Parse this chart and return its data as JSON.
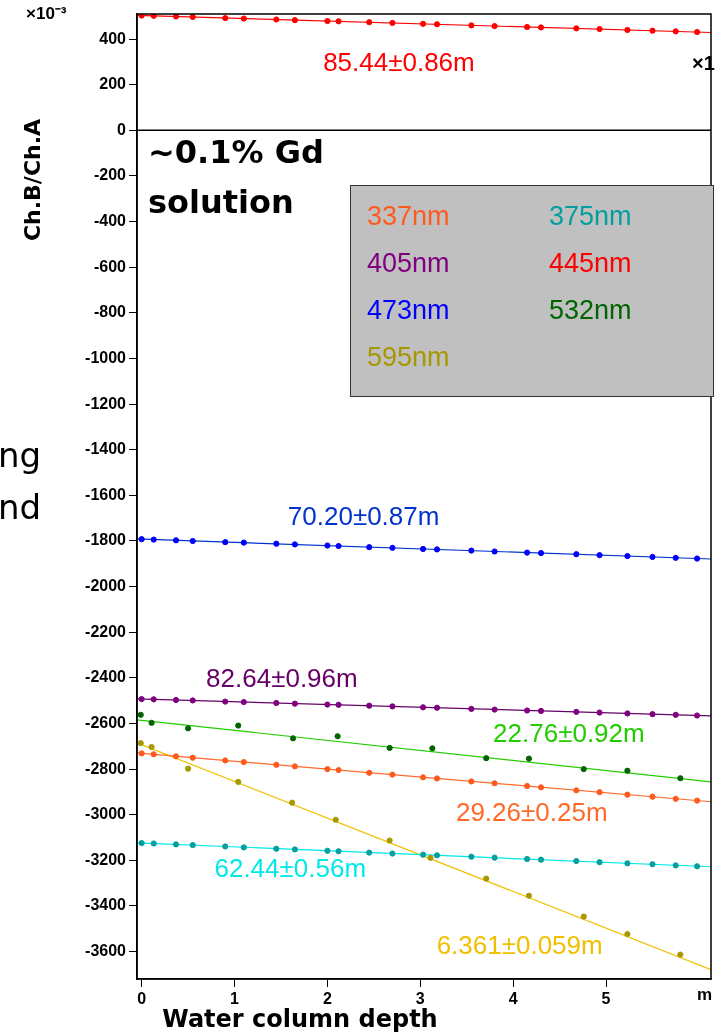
{
  "chart_data": {
    "type": "scatter",
    "xlabel": "Water column depth",
    "ylabel": "Ch.B/Ch.A",
    "annotations": [
      "~0.1% Gd\nsolution",
      "×10⁻³",
      "×1",
      "m",
      "ng",
      "nd",
      {
        "text": "85.44±0.86m",
        "x": 2.77,
        "y": 465
      },
      {
        "text": "70.20±0.87m",
        "x": 2.39,
        "y": -1825
      },
      {
        "text": "82.64±0.96m",
        "x": 1.51,
        "y": -2511
      },
      {
        "text": "22.76±0.92m",
        "x": 4.6,
        "y": -2787
      },
      {
        "text": "29.26±0.25m",
        "x": 4.2,
        "y": -2874
      },
      {
        "text": "62.44±0.56m",
        "x": 1.6,
        "y": -3151
      },
      {
        "text": "6.361±0.059m",
        "x": 4.07,
        "y": -3348
      }
    ],
    "xlim": [
      -0.05,
      6.13
    ],
    "ylim": [
      -3720,
      510
    ],
    "xticks": [
      0,
      1,
      2,
      3,
      4,
      5
    ],
    "yticks": [
      400,
      200,
      0,
      -200,
      -400,
      -600,
      -800,
      -1000,
      -1200,
      -1400,
      -1600,
      -1800,
      -2000,
      -2200,
      -2400,
      -2600,
      -2800,
      -3000,
      -3200,
      -3400,
      -3600
    ],
    "legend": "top right",
    "marker": "circle",
    "ref_lines": [
      {
        "axis": "y",
        "value": 0,
        "color": "#000000"
      }
    ],
    "x": [
      0,
      0.13,
      0.37,
      0.55,
      0.9,
      1.1,
      1.45,
      1.65,
      2.0,
      2.12,
      2.45,
      2.7,
      3.03,
      3.18,
      3.55,
      3.8,
      4.15,
      4.3,
      4.68,
      4.93,
      5.23,
      5.5,
      5.75,
      5.98
    ],
    "series": [
      {
        "type": "scatter",
        "name": "337nm",
        "color": "#ff5a1e",
        "values": [
          -2731,
          -2735,
          -2744,
          -2750,
          -2762,
          -2769,
          -2781,
          -2788,
          -2800,
          -2804,
          -2816,
          -2824,
          -2836,
          -2841,
          -2854,
          -2862,
          -2874,
          -2880,
          -2893,
          -2901,
          -2912,
          -2921,
          -2930,
          -2938
        ]
      },
      {
        "type": "scatter",
        "name": "375nm",
        "color": "#00a0a0",
        "values": [
          -3124,
          -3126,
          -3130,
          -3133,
          -3139,
          -3143,
          -3149,
          -3152,
          -3158,
          -3160,
          -3166,
          -3170,
          -3175,
          -3178,
          -3184,
          -3188,
          -3194,
          -3197,
          -3203,
          -3208,
          -3213,
          -3217,
          -3222,
          -3226
        ]
      },
      {
        "type": "scatter",
        "name": "405nm",
        "color": "#800080",
        "values": [
          -2493,
          -2494,
          -2497,
          -2499,
          -2504,
          -2506,
          -2510,
          -2513,
          -2517,
          -2518,
          -2522,
          -2525,
          -2529,
          -2531,
          -2536,
          -2539,
          -2543,
          -2545,
          -2549,
          -2552,
          -2556,
          -2559,
          -2562,
          -2565
        ]
      },
      {
        "type": "scatter",
        "name": "445nm",
        "color": "#ff0000",
        "values": [
          503,
          502,
          499,
          497,
          492,
          490,
          486,
          483,
          479,
          478,
          474,
          471,
          467,
          465,
          460,
          457,
          453,
          451,
          447,
          444,
          440,
          437,
          434,
          431
        ]
      },
      {
        "type": "scatter",
        "name": "473nm",
        "color": "#0000ff",
        "values": [
          -1792,
          -1794,
          -1797,
          -1800,
          -1805,
          -1807,
          -1812,
          -1815,
          -1820,
          -1822,
          -1827,
          -1830,
          -1835,
          -1837,
          -1842,
          -1846,
          -1851,
          -1853,
          -1858,
          -1862,
          -1866,
          -1870,
          -1874,
          -1877
        ]
      },
      {
        "type": "scatter",
        "name": "532nm",
        "color": "#006400",
        "x": [
          -0.01,
          0.107,
          0.5,
          1.04,
          1.63,
          2.11,
          2.67,
          3.13,
          3.71,
          4.17,
          4.76,
          5.23,
          5.8
        ],
        "values": [
          -2562,
          -2597,
          -2621,
          -2609,
          -2665,
          -2656,
          -2707,
          -2709,
          -2752,
          -2754,
          -2800,
          -2807,
          -2840
        ]
      },
      {
        "type": "scatter",
        "name": "595nm",
        "color": "#a89800",
        "x": [
          -0.01,
          0.107,
          0.5,
          1.04,
          1.62,
          2.09,
          2.67,
          3.11,
          3.71,
          4.17,
          4.76,
          5.23,
          5.8
        ],
        "values": [
          -2686,
          -2703,
          -2798,
          -2856,
          -2947,
          -3022,
          -3113,
          -3189,
          -3280,
          -3355,
          -3446,
          -3523,
          -3613
        ]
      },
      {
        "type": "line",
        "marker": "none",
        "color": "#ff0000",
        "x": [
          -0.05,
          6.13
        ],
        "values": [
          504,
          429
        ]
      },
      {
        "type": "line",
        "marker": "none",
        "color": "#0033cc",
        "x": [
          -0.05,
          6.13
        ],
        "values": [
          -1791,
          -1879
        ]
      },
      {
        "type": "line",
        "marker": "none",
        "color": "#660066",
        "x": [
          -0.05,
          6.13
        ],
        "values": [
          -2492,
          -2567
        ]
      },
      {
        "type": "line",
        "marker": "none",
        "color": "#22cc00",
        "x": [
          -0.05,
          6.13
        ],
        "values": [
          -2584,
          -2856
        ]
      },
      {
        "type": "line",
        "marker": "none",
        "color": "#ff6a2a",
        "x": [
          -0.05,
          6.13
        ],
        "values": [
          -2729,
          -2943
        ]
      },
      {
        "type": "line",
        "marker": "none",
        "color": "#00e8e8",
        "x": [
          -0.05,
          6.13
        ],
        "values": [
          -3123,
          -3228
        ]
      },
      {
        "type": "line",
        "marker": "none",
        "color": "#f0c000",
        "x": [
          -0.05,
          6.13
        ],
        "values": [
          -2685,
          -3679
        ]
      }
    ]
  }
}
